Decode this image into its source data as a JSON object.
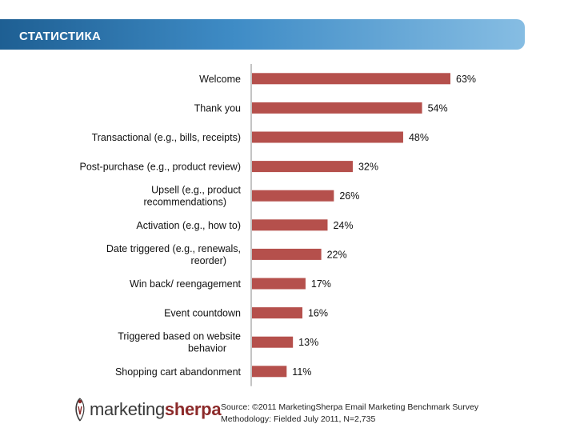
{
  "header": {
    "title": "СТАТИСТИКА"
  },
  "chart_data": {
    "type": "bar",
    "orientation": "horizontal",
    "categories": [
      [
        "Welcome"
      ],
      [
        "Thank you"
      ],
      [
        "Transactional (e.g., bills, receipts)"
      ],
      [
        "Post-purchase (e.g., product review)"
      ],
      [
        "Upsell (e.g., product",
        "recommendations)"
      ],
      [
        "Activation (e.g., how to)"
      ],
      [
        "Date triggered (e.g., renewals,",
        "reorder)"
      ],
      [
        "Win back/ reengagement"
      ],
      [
        "Event countdown"
      ],
      [
        "Triggered based on website",
        "behavior"
      ],
      [
        "Shopping cart abandonment"
      ]
    ],
    "values": [
      63,
      54,
      48,
      32,
      26,
      24,
      22,
      17,
      16,
      13,
      11
    ],
    "value_labels": [
      "63%",
      "54%",
      "48%",
      "32%",
      "26%",
      "24%",
      "22%",
      "17%",
      "16%",
      "13%",
      "11%"
    ],
    "xlim": [
      0,
      70
    ],
    "bar_color": "#b5504c"
  },
  "logo": {
    "part1": "marketing",
    "part2": "sherpa"
  },
  "source": {
    "line1": "Source: ©2011 MarketingSherpa Email Marketing Benchmark Survey",
    "line2": "Methodology: Fielded July 2011, N=2,735"
  }
}
